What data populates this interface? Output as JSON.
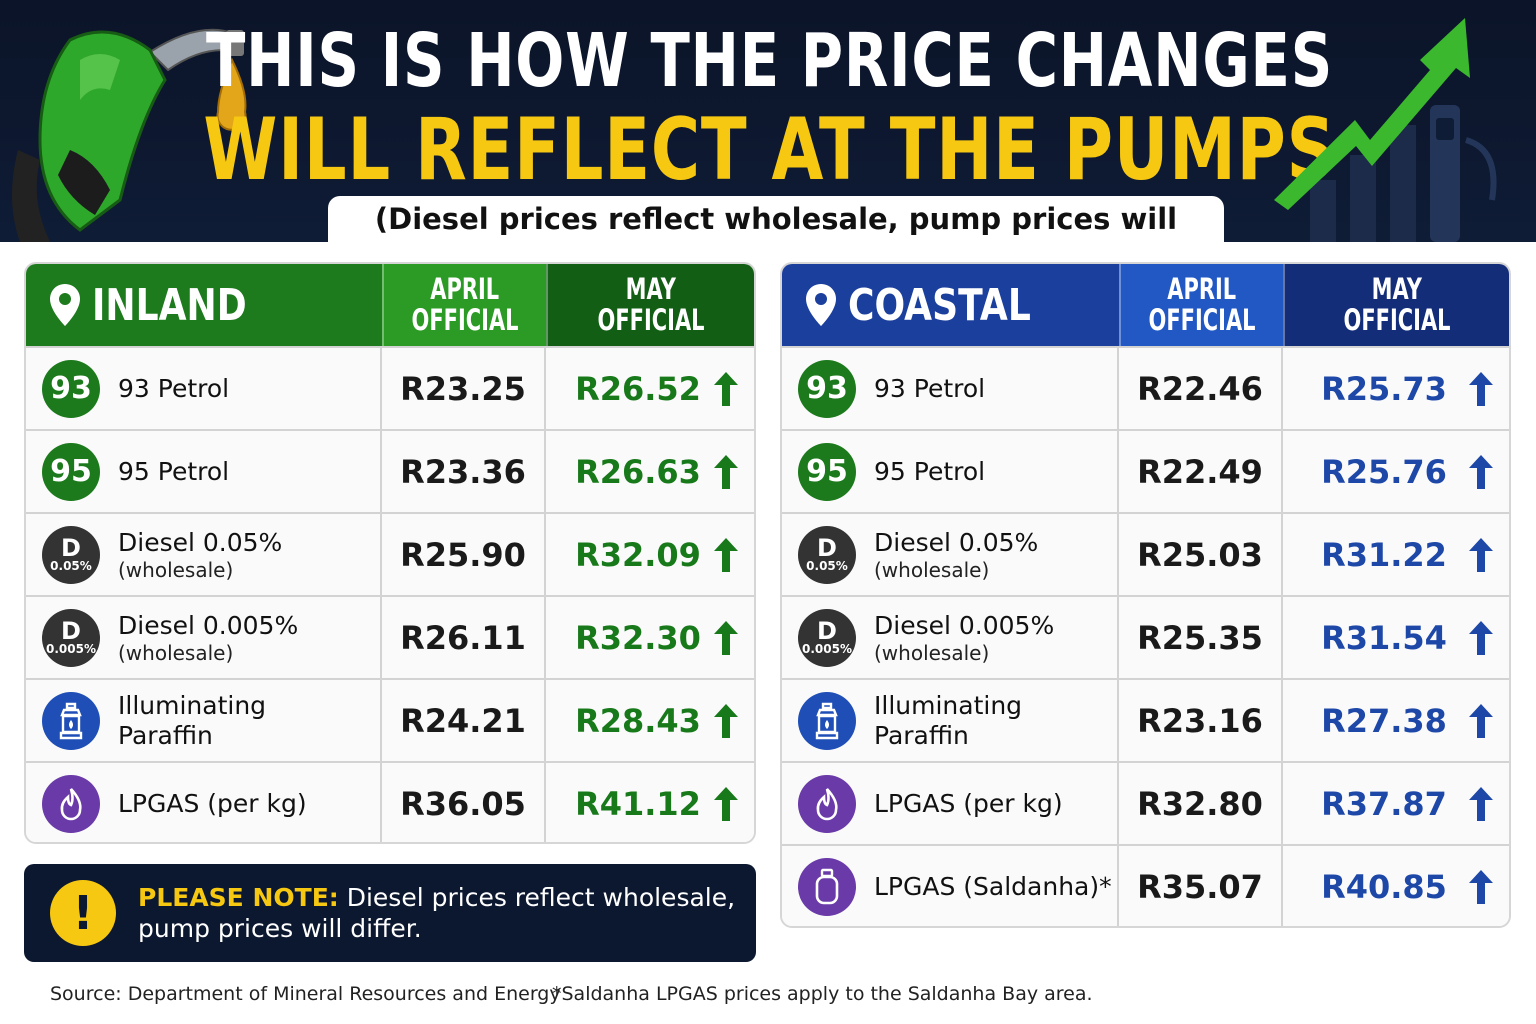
{
  "header": {
    "title_line1": "THIS IS HOW THE PRICE CHANGES",
    "title_line2": "WILL REFLECT AT THE PUMPS",
    "subtitle": "(Diesel prices reflect wholesale, pump prices will differ)"
  },
  "colors": {
    "inland_green": "#1d7a1d",
    "coastal_blue": "#1b3f9c",
    "title_yellow": "#f7c812",
    "header_bg": "#0b1428"
  },
  "inland": {
    "region": "INLAND",
    "col_april_l1": "APRIL",
    "col_april_l2": "OFFICIAL",
    "col_may_l1": "MAY",
    "col_may_l2": "OFFICIAL",
    "rows": [
      {
        "badge": "93",
        "name": "93 Petrol",
        "sub": "",
        "april": "R23.25",
        "may": "R26.52"
      },
      {
        "badge": "95",
        "name": "95 Petrol",
        "sub": "",
        "april": "R23.36",
        "may": "R26.63"
      },
      {
        "badge_top": "D",
        "badge_bottom": "0.05%",
        "name": "Diesel 0.05%",
        "sub": "(wholesale)",
        "april": "R25.90",
        "may": "R32.09"
      },
      {
        "badge_top": "D",
        "badge_bottom": "0.005%",
        "name": "Diesel 0.005%",
        "sub": "(wholesale)",
        "april": "R26.11",
        "may": "R32.30"
      },
      {
        "icon": "lantern-icon",
        "name_l1": "Illuminating",
        "name_l2": "Paraffin",
        "april": "R24.21",
        "may": "R28.43"
      },
      {
        "icon": "flame-icon",
        "name": "LPGAS (per kg)",
        "april": "R36.05",
        "may": "R41.12"
      }
    ]
  },
  "coastal": {
    "region": "COASTAL",
    "col_april_l1": "APRIL",
    "col_april_l2": "OFFICIAL",
    "col_may_l1": "MAY",
    "col_may_l2": "OFFICIAL",
    "rows": [
      {
        "badge": "93",
        "name": "93 Petrol",
        "april": "R22.46",
        "may": "R25.73"
      },
      {
        "badge": "95",
        "name": "95 Petrol",
        "april": "R22.49",
        "may": "R25.76"
      },
      {
        "badge_top": "D",
        "badge_bottom": "0.05%",
        "name": "Diesel 0.05%",
        "sub": "(wholesale)",
        "april": "R25.03",
        "may": "R31.22"
      },
      {
        "badge_top": "D",
        "badge_bottom": "0.005%",
        "name": "Diesel 0.005%",
        "sub": "(wholesale)",
        "april": "R25.35",
        "may": "R31.54"
      },
      {
        "icon": "lantern-icon",
        "name_l1": "Illuminating",
        "name_l2": "Paraffin",
        "april": "R23.16",
        "may": "R27.38"
      },
      {
        "icon": "flame-icon",
        "name": "LPGAS (per kg)",
        "april": "R32.80",
        "may": "R37.87"
      },
      {
        "icon": "gas-cylinder-icon",
        "name": "LPGAS (Saldanha)*",
        "april": "R35.07",
        "may": "R40.85"
      }
    ]
  },
  "note": {
    "label": "PLEASE NOTE:",
    "text_l1": " Diesel prices reflect wholesale,",
    "text_l2": "pump prices will differ."
  },
  "footer": {
    "source": "Source: Department of Mineral Resources and Energy",
    "footnote": "*Saldanha LPGAS prices apply to the Saldanha Bay area."
  }
}
